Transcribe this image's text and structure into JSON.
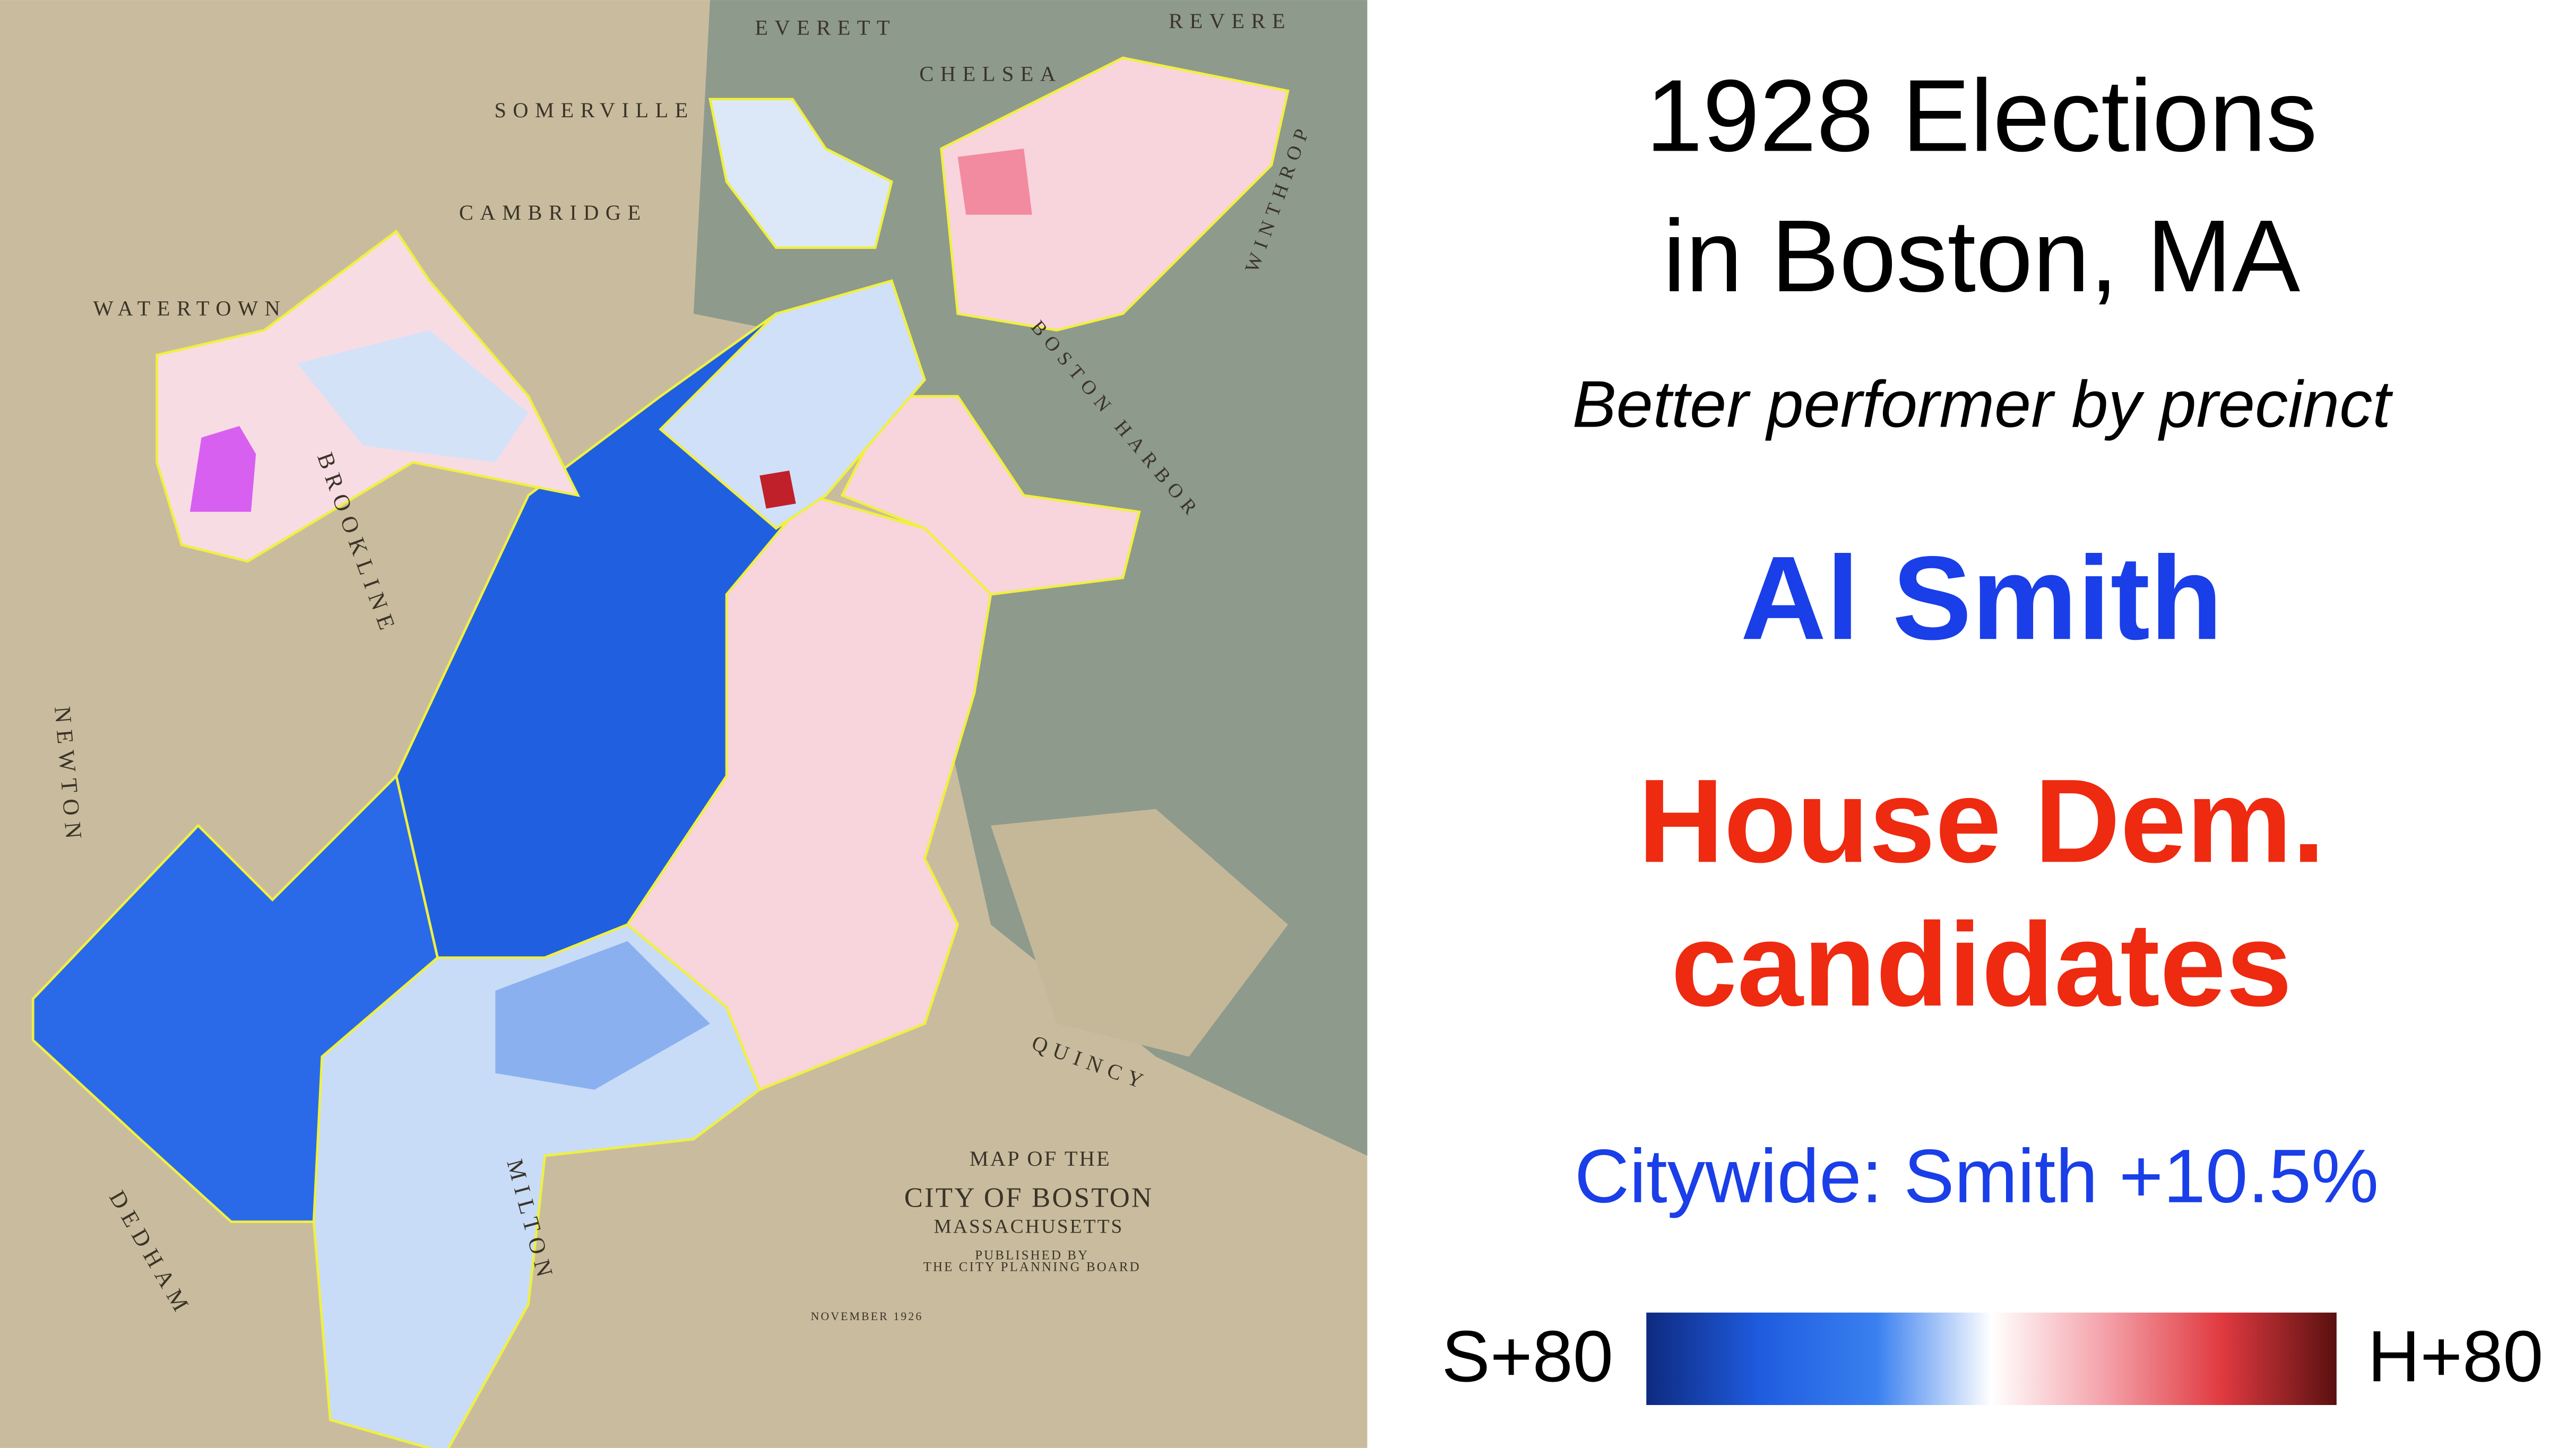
{
  "title": [
    "1928 Elections",
    "in Boston, MA"
  ],
  "subtitle": "Better performer by precinct",
  "candidate_a": {
    "name": "Al Smith",
    "color": "#1a3ee8"
  },
  "candidate_b": {
    "name": [
      "House Dem.",
      "candidates"
    ],
    "color": "#ee2a10"
  },
  "citywide": "Citywide: Smith +10.5%",
  "legend": {
    "min_label": "S+80",
    "max_label": "H+80",
    "colors": [
      "#0e2a80",
      "#1f5ce0",
      "#3a80f0",
      "#ffffff",
      "#f4a0a8",
      "#e03a40",
      "#5a1010"
    ]
  },
  "map_labels": [
    "EVERETT",
    "REVERE",
    "CHELSEA",
    "SOMERVILLE",
    "CAMBRIDGE",
    "WATERTOWN",
    "BROOKLINE",
    "NEWTON",
    "DEDHAM",
    "MILTON",
    "QUINCY",
    "WINTHROP",
    "BOSTON HARBOR",
    "MAP OF THE",
    "CITY OF BOSTON",
    "MASSACHUSETTS",
    "PUBLISHED BY",
    "THE CITY PLANNING BOARD",
    "NOVEMBER 1926"
  ]
}
